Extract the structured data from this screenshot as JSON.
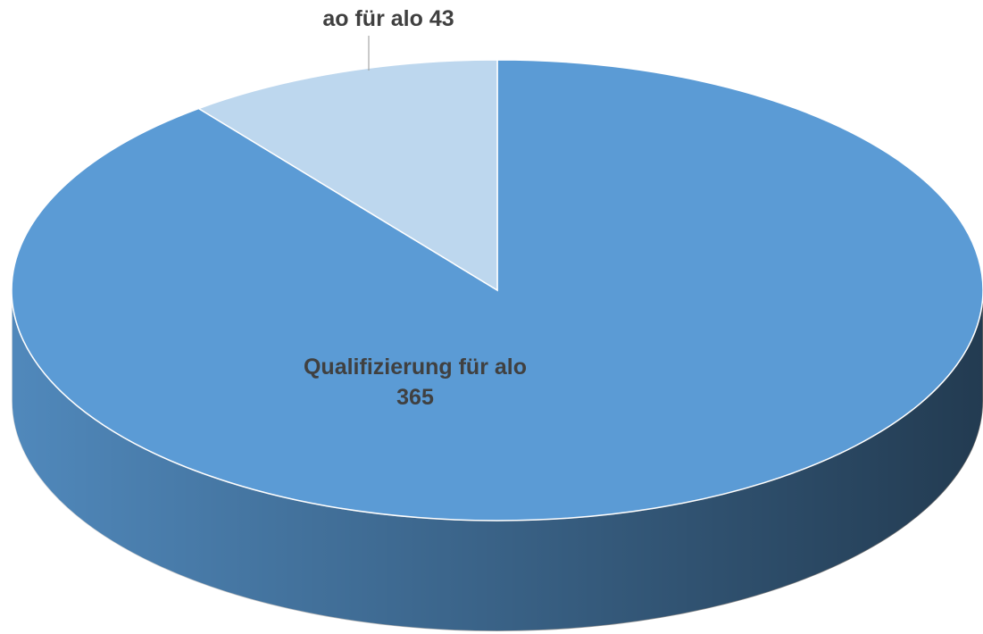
{
  "chart_data": {
    "type": "pie",
    "categories": [
      "Qualifizierung für alo",
      "ao für alo"
    ],
    "values": [
      365,
      43
    ],
    "colors": [
      "#5b9bd5",
      "#bdd7ee"
    ]
  }
}
